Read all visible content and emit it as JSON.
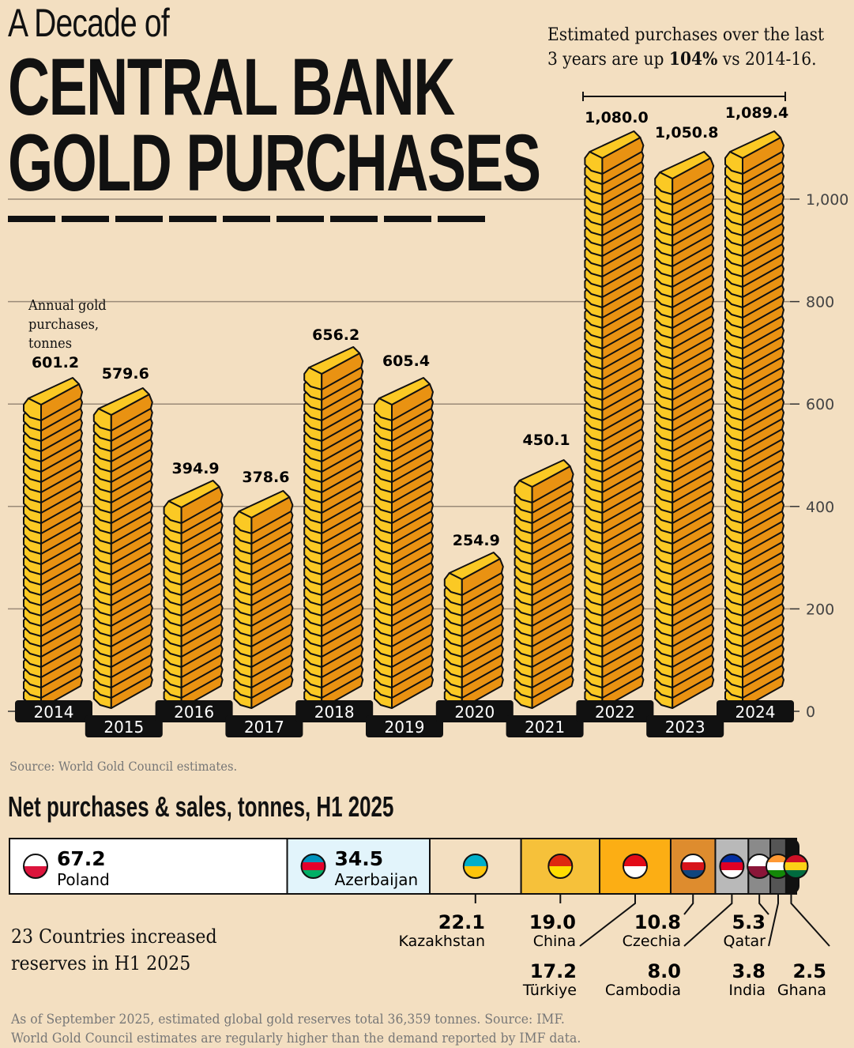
{
  "header": {
    "kicker": "A Decade of",
    "title_line1": "CENTRAL BANK",
    "title_line2": "GOLD PURCHASES"
  },
  "annotation": {
    "line1": "Estimated purchases over the last",
    "line2_pre": "3 years are up ",
    "line2_bold": "104%",
    "line2_post": " vs 2014-16."
  },
  "source": "Source: World Gold Council estimates.",
  "chart_data": [
    {
      "type": "bar",
      "ylabel": "Annual gold purchases, tonnes",
      "ylim": [
        0,
        1100
      ],
      "yticks": [
        0,
        200,
        400,
        600,
        800,
        1000
      ],
      "ytick_labels": [
        "0",
        "200",
        "400",
        "600",
        "800",
        "1,000"
      ],
      "grid": true,
      "categories": [
        "2014",
        "2015",
        "2016",
        "2017",
        "2018",
        "2019",
        "2020",
        "2021",
        "2022",
        "2023",
        "2024"
      ],
      "values": [
        601.2,
        579.6,
        394.9,
        378.6,
        656.2,
        605.4,
        254.9,
        450.1,
        1080.0,
        1050.8,
        1089.4
      ],
      "value_labels": [
        "601.2",
        "579.6",
        "394.9",
        "378.6",
        "656.2",
        "605.4",
        "254.9",
        "450.1",
        "1,080.0",
        "1,050.8",
        "1,089.4"
      ],
      "colors": {
        "ingot_light": "#fbc924",
        "ingot_dark": "#e99212",
        "outline": "#111111"
      }
    },
    {
      "type": "stacked-bar",
      "title": "Net purchases & sales, tonnes, H1 2025",
      "segments": [
        {
          "country": "Poland",
          "value": 67.2,
          "label": "67.2",
          "color": "#ffffff",
          "flag": [
            "#ffffff",
            "#dc143c"
          ]
        },
        {
          "country": "Azerbaijan",
          "value": 34.5,
          "label": "34.5",
          "color": "#e2f4fb",
          "flag": [
            "#0092bc",
            "#e4002b",
            "#00af66"
          ]
        },
        {
          "country": "Kazakhstan",
          "value": 22.1,
          "label": "22.1",
          "color": "#f3dfc1",
          "flag": [
            "#00afca",
            "#fec50c"
          ]
        },
        {
          "country": "China",
          "value": 19.0,
          "label": "19.0",
          "color": "#f6c13a",
          "flag": [
            "#de2910",
            "#ffde00"
          ]
        },
        {
          "country": "Türkiye",
          "value": 17.2,
          "label": "17.2",
          "color": "#fcae14",
          "flag": [
            "#e30a17",
            "#ffffff"
          ]
        },
        {
          "country": "Czechia",
          "value": 10.8,
          "label": "10.8",
          "color": "#de8c2e",
          "flag": [
            "#ffffff",
            "#d7141a",
            "#11457e"
          ]
        },
        {
          "country": "Cambodia",
          "value": 8.0,
          "label": "8.0",
          "color": "#b9b9b9",
          "flag": [
            "#032ea1",
            "#e00025",
            "#ffffff"
          ]
        },
        {
          "country": "Qatar",
          "value": 5.3,
          "label": "5.3",
          "color": "#8a8a8a",
          "flag": [
            "#ffffff",
            "#8a1538"
          ]
        },
        {
          "country": "India",
          "value": 3.8,
          "label": "3.8",
          "color": "#555555",
          "flag": [
            "#ff9933",
            "#ffffff",
            "#138808"
          ]
        },
        {
          "country": "Ghana",
          "value": 2.5,
          "label": "2.5",
          "color": "#111111",
          "flag": [
            "#ce1126",
            "#fcd116",
            "#006b3f"
          ]
        }
      ]
    }
  ],
  "summary": {
    "line1": "23 Countries increased",
    "line2": "reserves in H1 2025"
  },
  "footnote": {
    "line1": "As of September 2025, estimated global gold reserves total 36,359 tonnes. Source: IMF.",
    "line2": "World Gold Council estimates are regularly higher than the demand reported by IMF data."
  }
}
